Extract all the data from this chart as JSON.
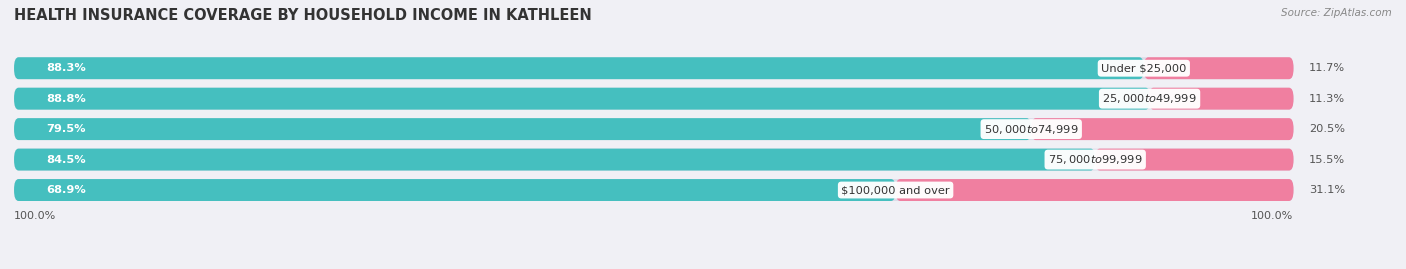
{
  "title": "HEALTH INSURANCE COVERAGE BY HOUSEHOLD INCOME IN KATHLEEN",
  "source": "Source: ZipAtlas.com",
  "categories": [
    "Under $25,000",
    "$25,000 to $49,999",
    "$50,000 to $74,999",
    "$75,000 to $99,999",
    "$100,000 and over"
  ],
  "with_coverage": [
    88.3,
    88.8,
    79.5,
    84.5,
    68.9
  ],
  "without_coverage": [
    11.7,
    11.3,
    20.5,
    15.5,
    31.1
  ],
  "color_with": "#45bfbf",
  "color_without": "#f07fa0",
  "bg_color": "#f0f0f5",
  "bar_bg_color": "#dcdce8",
  "title_fontsize": 10.5,
  "label_fontsize": 8.2,
  "legend_fontsize": 8.5,
  "axis_label_fontsize": 8
}
